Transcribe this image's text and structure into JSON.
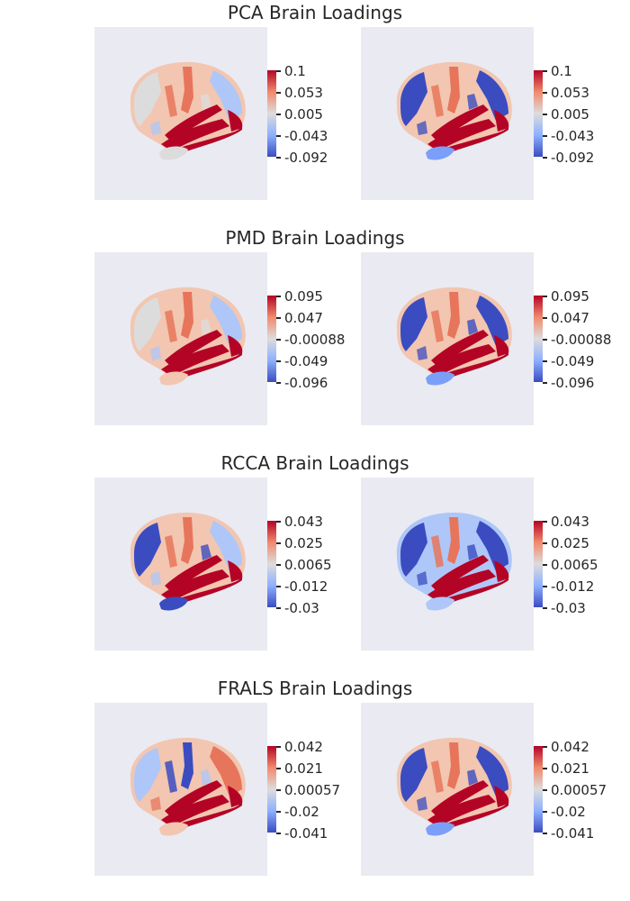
{
  "palette": {
    "strong_red": "#b40426",
    "mid_red": "#e7755b",
    "light_red": "#f2c6b0",
    "neutral": "#dcdcdc",
    "light_blue": "#aec7f8",
    "mid_blue": "#7b9ff9",
    "strong_blue": "#3b4cc0",
    "panel_bg": "#eaeaf2"
  },
  "sections": [
    {
      "title": "PCA Brain Loadings",
      "ticks": [
        "0.1",
        "0.053",
        "0.005",
        "-0.043",
        "-0.092"
      ],
      "views": [
        {
          "base": "light_red",
          "temporal": "strong_red",
          "frontal": "neutral",
          "parietal": "light_blue",
          "lower": "neutral",
          "strip": "strong_red",
          "patch": "mid_red"
        },
        {
          "base": "light_red",
          "temporal": "strong_red",
          "frontal": "strong_blue",
          "parietal": "strong_blue",
          "lower": "mid_blue",
          "strip": "strong_red",
          "patch": "mid_red"
        }
      ]
    },
    {
      "title": "PMD Brain Loadings",
      "ticks": [
        "0.095",
        "0.047",
        "-0.00088",
        "-0.049",
        "-0.096"
      ],
      "views": [
        {
          "base": "light_red",
          "temporal": "strong_red",
          "frontal": "neutral",
          "parietal": "light_blue",
          "lower": "light_red",
          "strip": "strong_red",
          "patch": "mid_red"
        },
        {
          "base": "light_red",
          "temporal": "strong_red",
          "frontal": "strong_blue",
          "parietal": "strong_blue",
          "lower": "mid_blue",
          "strip": "strong_red",
          "patch": "mid_red"
        }
      ]
    },
    {
      "title": "RCCA Brain Loadings",
      "ticks": [
        "0.043",
        "0.025",
        "0.0065",
        "-0.012",
        "-0.03"
      ],
      "views": [
        {
          "base": "light_red",
          "temporal": "strong_red",
          "frontal": "strong_blue",
          "parietal": "light_blue",
          "lower": "strong_blue",
          "strip": "strong_red",
          "patch": "mid_red"
        },
        {
          "base": "light_blue",
          "temporal": "strong_red",
          "frontal": "strong_blue",
          "parietal": "strong_blue",
          "lower": "light_blue",
          "strip": "strong_red",
          "patch": "mid_red"
        }
      ]
    },
    {
      "title": "FRALS Brain Loadings",
      "ticks": [
        "0.042",
        "0.021",
        "0.00057",
        "-0.02",
        "-0.041"
      ],
      "views": [
        {
          "base": "light_red",
          "temporal": "strong_red",
          "frontal": "light_blue",
          "parietal": "mid_red",
          "lower": "light_red",
          "strip": "strong_red",
          "patch": "strong_blue"
        },
        {
          "base": "light_red",
          "temporal": "strong_red",
          "frontal": "strong_blue",
          "parietal": "strong_blue",
          "lower": "mid_blue",
          "strip": "strong_red",
          "patch": "mid_red"
        }
      ]
    }
  ]
}
